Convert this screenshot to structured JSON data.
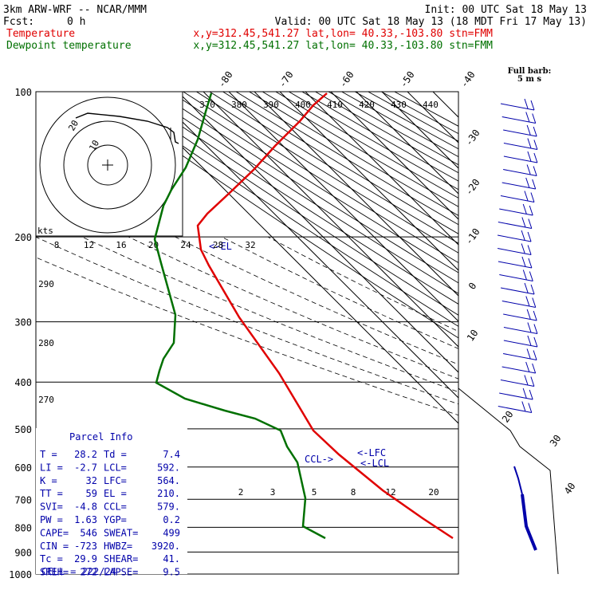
{
  "header": {
    "model": "3km ARW-WRF -- NCAR/MMM",
    "init": "Init: 00 UTC Sat 18 May 13",
    "fcst_label": "Fcst:",
    "fcst_value": "0 h",
    "valid": "Valid: 00 UTC Sat 18 May 13 (18 MDT Fri 17 May 13)",
    "temp_label": "Temperature",
    "temp_info": "x,y=312.45,541.27   lat,lon= 40.33,-103.80  stn=FMM",
    "dew_label": "Dewpoint temperature",
    "dew_info": "x,y=312.45,541.27   lat,lon= 40.33,-103.80  stn=FMM",
    "barb_title": "Full barb:",
    "barb_value": "5 m s",
    "colors": {
      "temperature": "#e00000",
      "dewpoint": "#007000",
      "parcel_box": "#0000aa"
    }
  },
  "chart_data": {
    "type": "line",
    "chart_kind": "skew-T log-p sounding",
    "pressure_ticks": [
      "100",
      "200",
      "300",
      "400",
      "500",
      "600",
      "700",
      "800",
      "900",
      "1000"
    ],
    "skew_temp_labels": [
      "-80",
      "-70",
      "-60",
      "-50",
      "-40",
      "-30",
      "-20",
      "-10",
      "0",
      "10",
      "20",
      "30",
      "40"
    ],
    "theta_labels": [
      "370",
      "380",
      "390",
      "400",
      "410",
      "420",
      "430",
      "440"
    ],
    "theta_left_labels": [
      "290",
      "280",
      "270"
    ],
    "mixing_ratio_labels": [
      "2",
      "3",
      "5",
      "8",
      "12",
      "20"
    ],
    "hodograph": {
      "units": "kts",
      "ticks": [
        "8",
        "12",
        "16",
        "20",
        "24",
        "28",
        "32"
      ],
      "ring_labels": [
        "20",
        "10"
      ]
    },
    "el_marker": "<-EL",
    "lfc_marker": "<-LFC",
    "lcl_marker": "<-LCL",
    "ccl_marker": "CCL->",
    "series": [
      {
        "name": "Temperature",
        "points": [
          [
            100,
            -56
          ],
          [
            150,
            -62
          ],
          [
            200,
            -67
          ],
          [
            250,
            -56
          ],
          [
            300,
            -44
          ],
          [
            400,
            -24
          ],
          [
            500,
            -9
          ],
          [
            600,
            2
          ],
          [
            700,
            10
          ],
          [
            800,
            19
          ],
          [
            850,
            28
          ]
        ]
      },
      {
        "name": "Dewpoint temperature",
        "points": [
          [
            100,
            -85
          ],
          [
            150,
            -80
          ],
          [
            200,
            -70
          ],
          [
            250,
            -62
          ],
          [
            300,
            -54
          ],
          [
            350,
            -58
          ],
          [
            400,
            -62
          ],
          [
            450,
            -35
          ],
          [
            500,
            -13
          ],
          [
            600,
            -5
          ],
          [
            700,
            0
          ],
          [
            800,
            4
          ],
          [
            850,
            7
          ]
        ]
      }
    ],
    "parcel_info": {
      "title": "Parcel Info",
      "rows": [
        [
          "T  =",
          "28.2",
          "Td =",
          "7.4"
        ],
        [
          "LI =",
          "-2.7",
          "LCL=",
          "592."
        ],
        [
          "K  =",
          "32",
          "LFC=",
          "564."
        ],
        [
          "TT =",
          "59",
          "EL =",
          "210."
        ],
        [
          "SVI=",
          "-4.8",
          "CCL=",
          "579."
        ],
        [
          "PW =",
          "1.63",
          "YGP=",
          "0.2"
        ],
        [
          "CAPE=",
          "546",
          "SWEAT=",
          "499"
        ],
        [
          "CIN =",
          "-723",
          "HWBZ=",
          "3920."
        ],
        [
          "Tc =",
          "29.9",
          "SHEAR=",
          "41."
        ],
        [
          "SREH=",
          "272",
          "LAPSE=",
          "9.5"
        ]
      ],
      "cell": "CELL = 222/24"
    }
  }
}
